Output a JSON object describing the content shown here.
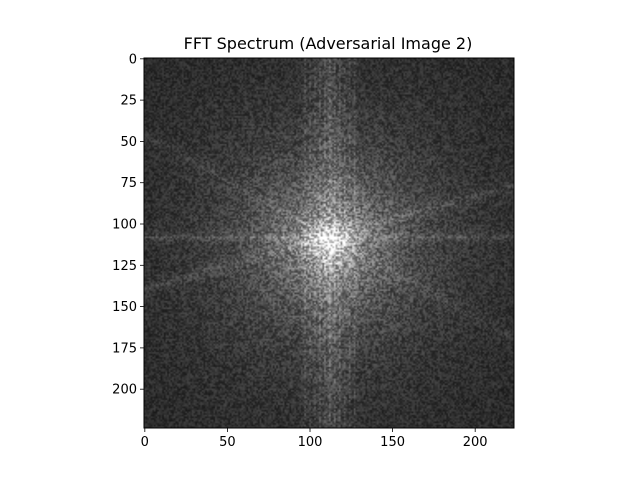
{
  "chart_data": {
    "type": "heatmap",
    "title": "FFT Spectrum (Adversarial Image 2)",
    "xlabel": "",
    "ylabel": "",
    "image_size": [
      224,
      224
    ],
    "xlim": [
      -0.5,
      223.5
    ],
    "ylim": [
      223.5,
      -0.5
    ],
    "colormap": "gray",
    "grid": false,
    "x_ticks": [
      0,
      50,
      100,
      150,
      200
    ],
    "y_ticks": [
      0,
      25,
      50,
      75,
      100,
      125,
      150,
      175,
      200
    ],
    "x_tick_labels": [
      "0",
      "50",
      "100",
      "150",
      "200"
    ],
    "y_tick_labels": [
      "0",
      "25",
      "50",
      "75",
      "100",
      "125",
      "150",
      "175",
      "200"
    ],
    "spectrum_center": [
      112,
      112
    ],
    "description_of_content": ""
  }
}
